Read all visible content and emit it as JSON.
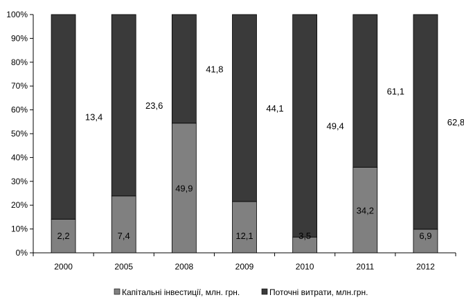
{
  "chart_data": {
    "type": "bar",
    "stacked": true,
    "percent": true,
    "categories": [
      "2000",
      "2005",
      "2008",
      "2009",
      "2010",
      "2011",
      "2012"
    ],
    "series": [
      {
        "name": "Капітальні інвестиції, млн. грн.",
        "values": [
          2.2,
          7.4,
          49.9,
          12.1,
          3.5,
          34.2,
          6.9
        ],
        "labels": [
          "2,2",
          "7,4",
          "49,9",
          "12,1",
          "3,5",
          "34,2",
          "6,9"
        ],
        "color": "#808080"
      },
      {
        "name": "Поточні витрати, млн.грн.",
        "values": [
          13.4,
          23.6,
          41.8,
          44.1,
          49.4,
          61.1,
          62.8
        ],
        "labels": [
          "13,4",
          "23,6",
          "41,8",
          "44,1",
          "49,4",
          "61,1",
          "62,8"
        ],
        "color": "#3a3a3a"
      }
    ],
    "yticks": [
      "0%",
      "10%",
      "20%",
      "30%",
      "40%",
      "50%",
      "60%",
      "70%",
      "80%",
      "90%",
      "100%"
    ],
    "ylim": [
      0,
      100
    ],
    "grid": false,
    "legend": "bottom"
  }
}
